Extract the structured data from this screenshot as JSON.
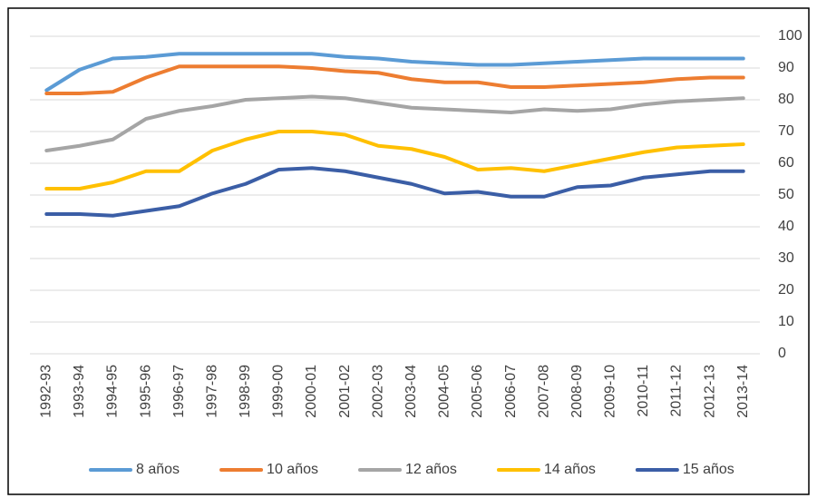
{
  "chart_data": {
    "type": "line",
    "categories": [
      "1992-93",
      "1993-94",
      "1994-95",
      "1995-96",
      "1996-97",
      "1997-98",
      "1998-99",
      "1999-00",
      "2000-01",
      "2001-02",
      "2002-03",
      "2003-04",
      "2004-05",
      "2005-06",
      "2006-07",
      "2007-08",
      "2008-09",
      "2009-10",
      "2010-11",
      "2011-12",
      "2012-13",
      "2013-14"
    ],
    "series": [
      {
        "name": "8 años",
        "color": "#5b9bd5",
        "values": [
          83,
          89.5,
          93,
          93.5,
          94.5,
          94.5,
          94.5,
          94.5,
          94.5,
          93.5,
          93,
          92,
          91.5,
          91,
          91,
          91.5,
          92,
          92.5,
          93,
          93,
          93,
          93
        ]
      },
      {
        "name": "10 años",
        "color": "#ed7d31",
        "values": [
          82,
          82,
          82.5,
          87,
          90.5,
          90.5,
          90.5,
          90.5,
          90,
          89,
          88.5,
          86.5,
          85.5,
          85.5,
          84,
          84,
          84.5,
          85,
          85.5,
          86.5,
          87,
          87
        ]
      },
      {
        "name": "12 años",
        "color": "#a5a5a5",
        "values": [
          64,
          65.5,
          67.5,
          74,
          76.5,
          78,
          80,
          80.5,
          81,
          80.5,
          79,
          77.5,
          77,
          76.5,
          76,
          77,
          76.5,
          77,
          78.5,
          79.5,
          80,
          80.5
        ]
      },
      {
        "name": "14 años",
        "color": "#ffc000",
        "values": [
          52,
          52,
          54,
          57.5,
          57.5,
          64,
          67.5,
          70,
          70,
          69,
          65.5,
          64.5,
          62,
          58,
          58.5,
          57.5,
          59.5,
          61.5,
          63.5,
          65,
          65.5,
          66
        ]
      },
      {
        "name": "15 años",
        "color": "#3b5ea6",
        "values": [
          44,
          44,
          43.5,
          45,
          46.5,
          50.5,
          53.5,
          58,
          58.5,
          57.5,
          55.5,
          53.5,
          50.5,
          51,
          49.5,
          49.5,
          52.5,
          53,
          55.5,
          56.5,
          57.5,
          57.5
        ]
      }
    ],
    "ylim": [
      0,
      100
    ],
    "yticks": [
      0,
      10,
      20,
      30,
      40,
      50,
      60,
      70,
      80,
      90,
      100
    ],
    "grid": true,
    "legend": "bottom"
  }
}
